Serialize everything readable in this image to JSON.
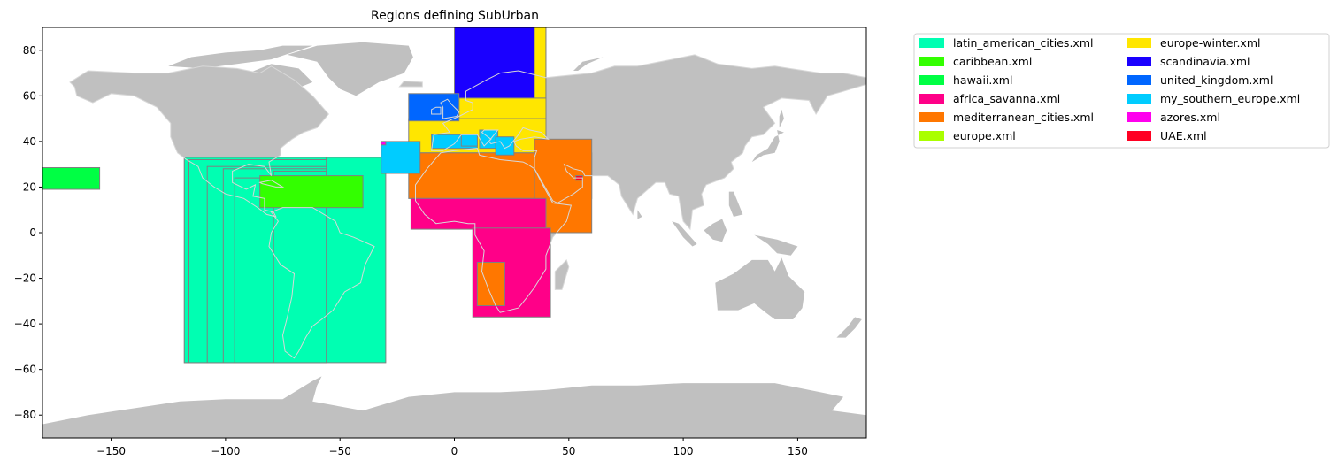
{
  "chart_data": {
    "type": "map",
    "title": "Regions defining SubUrban",
    "xlim": [
      -180,
      180
    ],
    "ylim": [
      -90,
      90
    ],
    "x_ticks": [
      -150,
      -100,
      -50,
      0,
      50,
      100,
      150
    ],
    "y_ticks": [
      -80,
      -60,
      -40,
      -20,
      0,
      20,
      40,
      60,
      80
    ],
    "land_color": "#c0c0c0",
    "border_color": "#808080",
    "legend": {
      "placement": "outside-right-top",
      "columns": 2,
      "entries": [
        {
          "label": "latin_american_cities.xml",
          "color": "#00ffb2"
        },
        {
          "label": "caribbean.xml",
          "color": "#33ff00"
        },
        {
          "label": "hawaii.xml",
          "color": "#00ff44"
        },
        {
          "label": "africa_savanna.xml",
          "color": "#ff0088"
        },
        {
          "label": "mediterranean_cities.xml",
          "color": "#ff7700"
        },
        {
          "label": "europe.xml",
          "color": "#aaff00"
        },
        {
          "label": "europe-winter.xml",
          "color": "#ffe600"
        },
        {
          "label": "scandinavia.xml",
          "color": "#1a00ff"
        },
        {
          "label": "united_kingdom.xml",
          "color": "#0066ff"
        },
        {
          "label": "my_southern_europe.xml",
          "color": "#00ccff"
        },
        {
          "label": "azores.xml",
          "color": "#ff00ee"
        },
        {
          "label": "UAE.xml",
          "color": "#ff0022"
        }
      ]
    },
    "regions": [
      {
        "name": "latin_american_cities.xml",
        "color": "#00ffb2",
        "lon": [
          -118,
          -30
        ],
        "lat": [
          -57,
          33
        ]
      },
      {
        "name": "latin_american_cities.xml",
        "color": "#00ffb2",
        "lon": [
          -118,
          -56
        ],
        "lat": [
          -57,
          33
        ]
      },
      {
        "name": "latin_american_cities.xml",
        "color": "#00ffb2",
        "lon": [
          -116,
          -56
        ],
        "lat": [
          -57,
          32
        ]
      },
      {
        "name": "latin_american_cities.xml",
        "color": "#00ffb2",
        "lon": [
          -108,
          -56
        ],
        "lat": [
          -57,
          29
        ]
      },
      {
        "name": "latin_american_cities.xml",
        "color": "#00ffb2",
        "lon": [
          -101,
          -56
        ],
        "lat": [
          -57,
          28
        ]
      },
      {
        "name": "latin_american_cities.xml",
        "color": "#00ffb2",
        "lon": [
          -96,
          -56
        ],
        "lat": [
          -57,
          24
        ]
      },
      {
        "name": "latin_american_cities.xml",
        "color": "#00ffb2",
        "lon": [
          -79,
          -56
        ],
        "lat": [
          -57,
          27
        ]
      },
      {
        "name": "hawaii.xml",
        "color": "#00ff44",
        "lon": [
          -181,
          -155
        ],
        "lat": [
          19,
          28.5
        ]
      },
      {
        "name": "caribbean.xml",
        "color": "#33ff00",
        "lon": [
          -85,
          -40
        ],
        "lat": [
          11,
          25
        ]
      },
      {
        "name": "scandinavia.xml",
        "color": "#1a00ff",
        "lon": [
          0,
          40
        ],
        "lat": [
          54,
          90
        ]
      },
      {
        "name": "europe-winter.xml",
        "color": "#ffe600",
        "lon": [
          35,
          40
        ],
        "lat": [
          35,
          90
        ]
      },
      {
        "name": "europe-winter.xml",
        "color": "#ffe600",
        "lon": [
          2,
          40
        ],
        "lat": [
          35,
          59
        ]
      },
      {
        "name": "europe-winter.xml",
        "color": "#ffe600",
        "lon": [
          -20,
          40
        ],
        "lat": [
          35,
          50
        ]
      },
      {
        "name": "united_kingdom.xml",
        "color": "#0066ff",
        "lon": [
          -20,
          2
        ],
        "lat": [
          49,
          61
        ]
      },
      {
        "name": "mediterranean_cities.xml",
        "color": "#ff7700",
        "lon": [
          -20,
          60
        ],
        "lat": [
          15,
          35
        ]
      },
      {
        "name": "mediterranean_cities.xml",
        "color": "#ff7700",
        "lon": [
          35,
          60
        ],
        "lat": [
          0,
          41
        ]
      },
      {
        "name": "africa_savanna.xml",
        "color": "#ff0088",
        "lon": [
          -19,
          40
        ],
        "lat": [
          1.5,
          15
        ]
      },
      {
        "name": "africa_savanna.xml",
        "color": "#ff0088",
        "lon": [
          8,
          42
        ],
        "lat": [
          -37,
          2
        ]
      },
      {
        "name": "mediterranean_cities.xml",
        "color": "#ff7700",
        "lon": [
          10,
          22
        ],
        "lat": [
          -32,
          -13
        ]
      },
      {
        "name": "my_southern_europe.xml",
        "color": "#00ccff",
        "lon": [
          -32,
          -15
        ],
        "lat": [
          26,
          40
        ]
      },
      {
        "name": "my_southern_europe.xml",
        "color": "#00ccff",
        "lon": [
          -10,
          10
        ],
        "lat": [
          37,
          43
        ]
      },
      {
        "name": "my_southern_europe.xml",
        "color": "#00ccff",
        "lon": [
          3,
          10
        ],
        "lat": [
          38,
          43
        ]
      },
      {
        "name": "my_southern_europe.xml",
        "color": "#00ccff",
        "lon": [
          11,
          19
        ],
        "lat": [
          37,
          45
        ]
      },
      {
        "name": "my_southern_europe.xml",
        "color": "#00ccff",
        "lon": [
          18,
          26
        ],
        "lat": [
          34,
          42
        ]
      },
      {
        "name": "azores.xml",
        "color": "#ff00ee",
        "lon": [
          -32,
          -30
        ],
        "lat": [
          38.5,
          40
        ]
      },
      {
        "name": "UAE.xml",
        "color": "#ff0022",
        "lon": [
          53,
          56
        ],
        "lat": [
          23,
          25
        ]
      }
    ]
  }
}
